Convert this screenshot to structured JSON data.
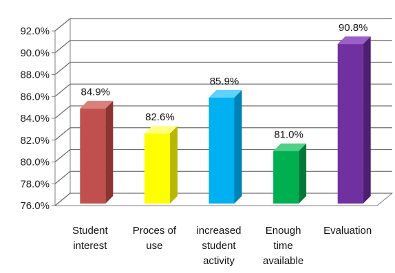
{
  "chart_data": {
    "type": "bar",
    "title": "",
    "xlabel": "",
    "ylabel": "",
    "categories": [
      [
        "Student",
        "interest"
      ],
      [
        "Proces of",
        "use"
      ],
      [
        "increased",
        "student",
        "activity"
      ],
      [
        "Enough",
        "time",
        "available"
      ],
      [
        "Evaluation"
      ]
    ],
    "values": [
      84.9,
      82.6,
      85.9,
      81.0,
      90.8
    ],
    "value_labels": [
      "84.9%",
      "82.6%",
      "85.9%",
      "81.0%",
      "90.8%"
    ],
    "ylim": [
      76.0,
      92.0
    ],
    "yticks": [
      "76.0%",
      "78.0%",
      "80.0%",
      "82.0%",
      "84.0%",
      "86.0%",
      "88.0%",
      "90.0%",
      "92.0%"
    ],
    "grid": true,
    "legend": "none",
    "three_d": true,
    "colors": [
      {
        "front": "#c0504d",
        "side": "#8c3432",
        "top": "#d9807d"
      },
      {
        "front": "#ffff00",
        "side": "#b8b800",
        "top": "#ffff80"
      },
      {
        "front": "#00b0f0",
        "side": "#0082b4",
        "top": "#5fd2ff"
      },
      {
        "front": "#00b050",
        "side": "#007a36",
        "top": "#4fd088"
      },
      {
        "front": "#7030a0",
        "side": "#4d1f70",
        "top": "#9a5fc8"
      }
    ]
  }
}
